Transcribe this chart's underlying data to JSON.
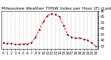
{
  "title": "Milwaukee Weather THSW Index per Hour (F) (Last 24 Hours)",
  "hours": [
    0,
    1,
    2,
    3,
    4,
    5,
    6,
    7,
    8,
    9,
    10,
    11,
    12,
    13,
    14,
    15,
    16,
    17,
    18,
    19,
    20,
    21,
    22,
    23
  ],
  "values": [
    36,
    35,
    35,
    33,
    33,
    34,
    34,
    36,
    45,
    58,
    72,
    82,
    85,
    84,
    80,
    65,
    50,
    45,
    44,
    44,
    42,
    40,
    36,
    30
  ],
  "line_color": "#ff0000",
  "marker_color": "#000000",
  "bg_color": "#ffffff",
  "grid_color": "#b0b0b0",
  "ylim_min": 25,
  "ylim_max": 90,
  "ytick_vals": [
    30,
    40,
    50,
    60,
    70,
    80,
    90
  ],
  "title_fontsize": 4.5,
  "tick_fontsize": 3.5
}
